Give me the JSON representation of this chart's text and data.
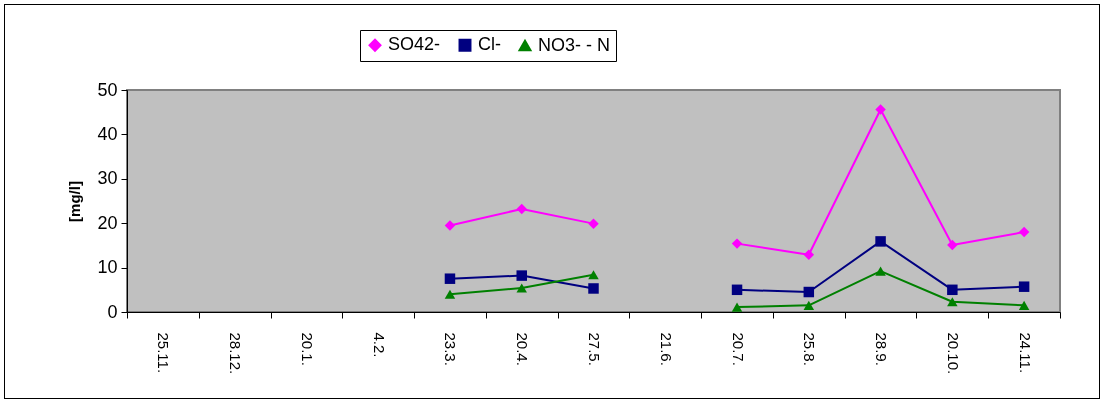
{
  "chart_data": {
    "type": "line",
    "ylabel": "[mg/l]",
    "categories": [
      "25.11.",
      "28.12.",
      "20.1.",
      "4.2.",
      "23.3.",
      "20.4.",
      "27.5.",
      "21.6.",
      "20.7.",
      "25.8.",
      "28.9.",
      "20.10.",
      "24.11."
    ],
    "ylim": [
      0,
      50
    ],
    "yticks": [
      0,
      10,
      20,
      30,
      40,
      50
    ],
    "grid": false,
    "legend": "top",
    "series": [
      {
        "name": "SO42-",
        "color": "#ff00ff",
        "marker": "diamond",
        "values": [
          null,
          null,
          null,
          null,
          19.5,
          23.2,
          19.9,
          null,
          15.4,
          12.9,
          45.6,
          15.1,
          18.0
        ]
      },
      {
        "name": "Cl-",
        "color": "#000080",
        "marker": "square",
        "values": [
          null,
          null,
          null,
          null,
          7.5,
          8.2,
          5.3,
          null,
          5.0,
          4.5,
          15.9,
          5.0,
          5.7
        ]
      },
      {
        "name": "NO3- - N",
        "color": "#008000",
        "marker": "triangle",
        "values": [
          null,
          null,
          null,
          null,
          4.0,
          5.4,
          8.4,
          null,
          1.1,
          1.5,
          9.2,
          2.3,
          1.5
        ]
      }
    ]
  }
}
